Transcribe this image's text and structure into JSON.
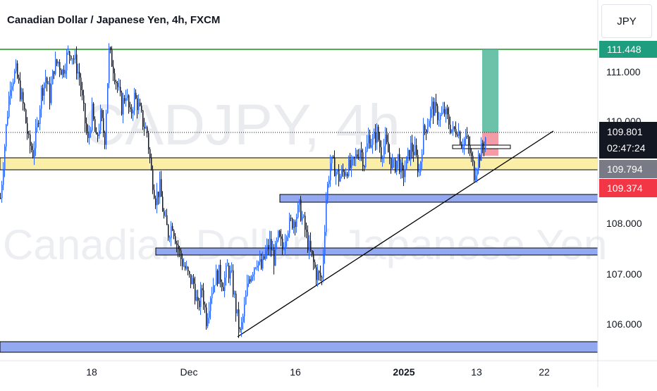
{
  "header": {
    "title": "Canadian Dollar / Japanese Yen, 4h, FXCM",
    "currency": "JPY"
  },
  "watermark": {
    "symbol": "CADJPY, 4h",
    "name": "Canadian Dollar / Japanese Yen"
  },
  "chart_data": {
    "type": "candlestick",
    "symbol": "CADJPY",
    "interval": "4h",
    "broker": "FXCM",
    "y_ticks": [
      "111.000",
      "110.000",
      "108.000",
      "107.000",
      "106.000"
    ],
    "x_ticks": [
      {
        "label": "18",
        "bold": false
      },
      {
        "label": "Dec",
        "bold": false
      },
      {
        "label": "16",
        "bold": false
      },
      {
        "label": "2025",
        "bold": true
      },
      {
        "label": "13",
        "bold": false
      },
      {
        "label": "22",
        "bold": false
      }
    ],
    "price_labels": [
      {
        "value": "111.448",
        "color": "#1e9e7e",
        "role": "target"
      },
      {
        "value": "109.801",
        "subtext": "02:47:24",
        "color": "#131722",
        "role": "last-price"
      },
      {
        "value": "109.794",
        "color": "#787b86",
        "role": "previous-price"
      },
      {
        "value": "109.374",
        "color": "#f23645",
        "role": "stop"
      }
    ],
    "price_path": [
      [
        0,
        108.5
      ],
      [
        8,
        109.9
      ],
      [
        14,
        110.8
      ],
      [
        22,
        111.0
      ],
      [
        28,
        110.6
      ],
      [
        34,
        110.2
      ],
      [
        40,
        109.6
      ],
      [
        46,
        109.4
      ],
      [
        52,
        109.9
      ],
      [
        58,
        110.6
      ],
      [
        64,
        110.9
      ],
      [
        70,
        110.5
      ],
      [
        76,
        111.1
      ],
      [
        82,
        111.2
      ],
      [
        88,
        111.0
      ],
      [
        94,
        111.3
      ],
      [
        100,
        111.4
      ],
      [
        106,
        111.2
      ],
      [
        112,
        110.9
      ],
      [
        118,
        110.2
      ],
      [
        124,
        109.6
      ],
      [
        130,
        110.2
      ],
      [
        136,
        109.6
      ],
      [
        142,
        110.1
      ],
      [
        148,
        109.7
      ],
      [
        154,
        111.4
      ],
      [
        160,
        111.1
      ],
      [
        166,
        110.7
      ],
      [
        172,
        110.3
      ],
      [
        178,
        110.6
      ],
      [
        184,
        110.1
      ],
      [
        190,
        110.5
      ],
      [
        196,
        110.3
      ],
      [
        202,
        110.0
      ],
      [
        208,
        109.8
      ],
      [
        214,
        109.0
      ],
      [
        220,
        108.5
      ],
      [
        226,
        108.7
      ],
      [
        232,
        108.1
      ],
      [
        238,
        107.8
      ],
      [
        244,
        108.0
      ],
      [
        250,
        107.6
      ],
      [
        256,
        107.3
      ],
      [
        262,
        107.1
      ],
      [
        268,
        106.9
      ],
      [
        274,
        106.8
      ],
      [
        280,
        106.3
      ],
      [
        286,
        106.7
      ],
      [
        292,
        106.1
      ],
      [
        298,
        106.6
      ],
      [
        304,
        106.9
      ],
      [
        310,
        107.0
      ],
      [
        316,
        106.8
      ],
      [
        322,
        107.1
      ],
      [
        328,
        106.9
      ],
      [
        334,
        106.3
      ],
      [
        340,
        105.8
      ],
      [
        346,
        106.3
      ],
      [
        352,
        106.9
      ],
      [
        358,
        107.1
      ],
      [
        364,
        107.3
      ],
      [
        370,
        107.1
      ],
      [
        376,
        107.4
      ],
      [
        382,
        107.6
      ],
      [
        388,
        107.3
      ],
      [
        394,
        107.7
      ],
      [
        400,
        107.5
      ],
      [
        406,
        107.9
      ],
      [
        412,
        108.0
      ],
      [
        418,
        108.1
      ],
      [
        424,
        108.3
      ],
      [
        430,
        108.0
      ],
      [
        436,
        107.6
      ],
      [
        442,
        107.3
      ],
      [
        448,
        107.0
      ],
      [
        456,
        106.9
      ],
      [
        462,
        108.5
      ],
      [
        468,
        109.2
      ],
      [
        474,
        109.1
      ],
      [
        480,
        108.9
      ],
      [
        486,
        109.0
      ],
      [
        492,
        109.1
      ],
      [
        498,
        109.1
      ],
      [
        504,
        109.3
      ],
      [
        510,
        109.5
      ],
      [
        516,
        109.2
      ],
      [
        522,
        109.7
      ],
      [
        528,
        109.6
      ],
      [
        534,
        109.8
      ],
      [
        540,
        109.4
      ],
      [
        546,
        109.6
      ],
      [
        552,
        109.3
      ],
      [
        558,
        109.1
      ],
      [
        564,
        109.3
      ],
      [
        570,
        108.9
      ],
      [
        576,
        109.2
      ],
      [
        582,
        109.5
      ],
      [
        588,
        109.4
      ],
      [
        594,
        109.0
      ],
      [
        600,
        109.8
      ],
      [
        606,
        110.0
      ],
      [
        612,
        110.3
      ],
      [
        618,
        110.2
      ],
      [
        624,
        110.1
      ],
      [
        630,
        110.2
      ],
      [
        636,
        110.0
      ],
      [
        642,
        109.8
      ],
      [
        648,
        109.9
      ],
      [
        654,
        109.6
      ],
      [
        660,
        109.7
      ],
      [
        666,
        109.4
      ],
      [
        672,
        109.0
      ],
      [
        678,
        109.3
      ],
      [
        684,
        109.5
      ],
      [
        690,
        109.8
      ]
    ]
  }
}
